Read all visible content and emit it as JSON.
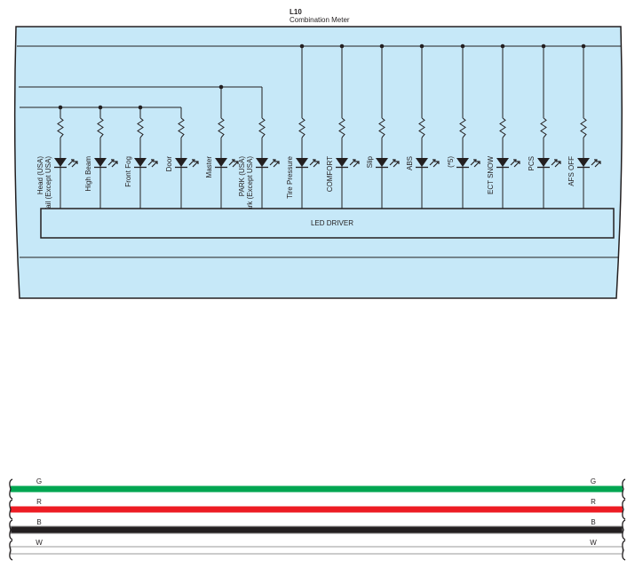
{
  "component": {
    "code": "L10",
    "name": "Combination Meter",
    "body_color": "#c6e8f8",
    "driver_label": "LED DRIVER"
  },
  "indicators": [
    {
      "lines": [
        "Head (USA)",
        "Tail (Except USA)"
      ],
      "bus": "c"
    },
    {
      "lines": [
        "High Beam"
      ],
      "bus": "c"
    },
    {
      "lines": [
        "Front Fog"
      ],
      "bus": "c"
    },
    {
      "lines": [
        "Door"
      ],
      "bus": "c"
    },
    {
      "lines": [
        "Master"
      ],
      "bus": "b"
    },
    {
      "lines": [
        "PARK (USA)",
        "Park (Except USA)"
      ],
      "bus": "b"
    },
    {
      "lines": [
        "Tire Pressure"
      ],
      "bus": "a"
    },
    {
      "lines": [
        "COMFORT"
      ],
      "bus": "a"
    },
    {
      "lines": [
        "Slip"
      ],
      "bus": "a"
    },
    {
      "lines": [
        "ABS"
      ],
      "bus": "a"
    },
    {
      "lines": [
        "(*5)"
      ],
      "bus": "a"
    },
    {
      "lines": [
        "ECT SNOW"
      ],
      "bus": "a"
    },
    {
      "lines": [
        "PCS"
      ],
      "bus": "a"
    },
    {
      "lines": [
        "AFS OFF"
      ],
      "bus": "a"
    }
  ],
  "wires": [
    {
      "code": "G",
      "color": "#00a651"
    },
    {
      "code": "R",
      "color": "#ed1c24"
    },
    {
      "code": "B",
      "color": "#231f20"
    },
    {
      "code": "W",
      "color": "#ffffff"
    }
  ]
}
